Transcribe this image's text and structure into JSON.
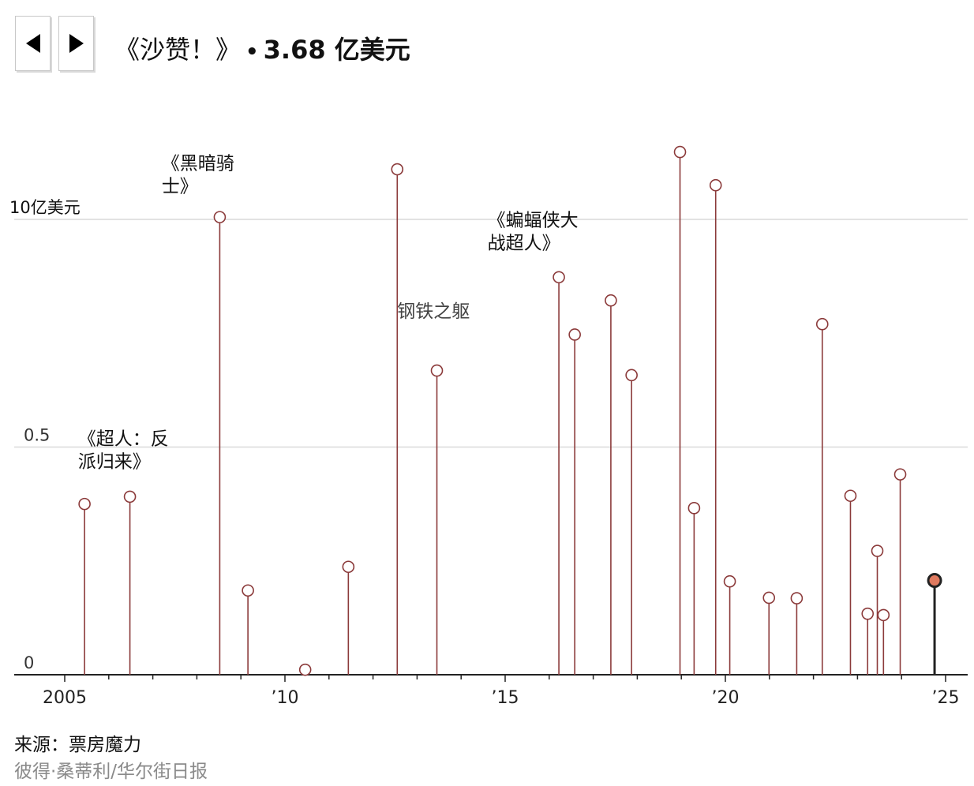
{
  "header": {
    "prev_label": "previous",
    "next_label": "next",
    "title_name": "《沙赞！》",
    "title_sep": "•",
    "title_value": "3.68 亿美元"
  },
  "footer": {
    "source": "来源：票房魔力",
    "credit": "彼得·桑蒂利/华尔街日报"
  },
  "icons": {
    "prev": "triangle-left-icon",
    "next": "triangle-right-icon"
  },
  "colors": {
    "stem": "#8b3a3a",
    "highlight_fill": "#e07a5f",
    "highlight_stem": "#222222",
    "grid": "#d9d9d9"
  },
  "chart_data": {
    "type": "lollipop",
    "title": "",
    "xlabel": "",
    "ylabel": "",
    "xlim": [
      2004.55,
      2025.3
    ],
    "ylim": [
      0,
      1.2
    ],
    "y_ticks": [
      {
        "value": 0,
        "label": "0"
      },
      {
        "value": 0.5,
        "label": "0.5"
      },
      {
        "value": 1.0,
        "label": "10亿美元"
      }
    ],
    "x_ticks": [
      {
        "value": 2005,
        "label": "2005"
      },
      {
        "value": 2010,
        "label": "’10"
      },
      {
        "value": 2015,
        "label": "’15"
      },
      {
        "value": 2020,
        "label": "’20"
      },
      {
        "value": 2025,
        "label": "’25"
      }
    ],
    "grid": "horizontal",
    "points": [
      {
        "x": 2005.45,
        "y": 0.375
      },
      {
        "x": 2006.48,
        "y": 0.391
      },
      {
        "x": 2008.52,
        "y": 1.005,
        "label": "《黑暗骑士》"
      },
      {
        "x": 2009.16,
        "y": 0.185
      },
      {
        "x": 2010.46,
        "y": 0.011
      },
      {
        "x": 2011.44,
        "y": 0.237
      },
      {
        "x": 2012.55,
        "y": 1.11
      },
      {
        "x": 2013.45,
        "y": 0.668,
        "label": "钢铁之躯"
      },
      {
        "x": 2016.22,
        "y": 0.873,
        "label": "《蝙蝠侠大战超人》"
      },
      {
        "x": 2016.58,
        "y": 0.747
      },
      {
        "x": 2017.4,
        "y": 0.822
      },
      {
        "x": 2017.87,
        "y": 0.658
      },
      {
        "x": 2018.97,
        "y": 1.148
      },
      {
        "x": 2019.29,
        "y": 0.366
      },
      {
        "x": 2019.78,
        "y": 1.075
      },
      {
        "x": 2020.1,
        "y": 0.205
      },
      {
        "x": 2020.99,
        "y": 0.169
      },
      {
        "x": 2021.62,
        "y": 0.168
      },
      {
        "x": 2022.2,
        "y": 0.77
      },
      {
        "x": 2022.84,
        "y": 0.393
      },
      {
        "x": 2023.23,
        "y": 0.134
      },
      {
        "x": 2023.45,
        "y": 0.272
      },
      {
        "x": 2023.59,
        "y": 0.131
      },
      {
        "x": 2023.97,
        "y": 0.44
      },
      {
        "x": 2024.75,
        "y": 0.207,
        "highlight": true
      }
    ],
    "annotations": [
      {
        "text_lines": [
          "《超人：反",
          "派归来》"
        ],
        "x": 2005.3,
        "y": 0.505,
        "align": "start"
      },
      {
        "text_lines": [
          "《黑暗骑",
          "士》"
        ],
        "x": 2007.2,
        "y": 1.11,
        "align": "start"
      },
      {
        "text_lines": [
          "钢铁之躯"
        ],
        "x": 2012.55,
        "y": 0.785,
        "align": "start",
        "muted": true
      },
      {
        "text_lines": [
          "《蝙蝠侠大",
          "战超人》"
        ],
        "x": 2014.6,
        "y": 0.985,
        "align": "start"
      }
    ]
  }
}
